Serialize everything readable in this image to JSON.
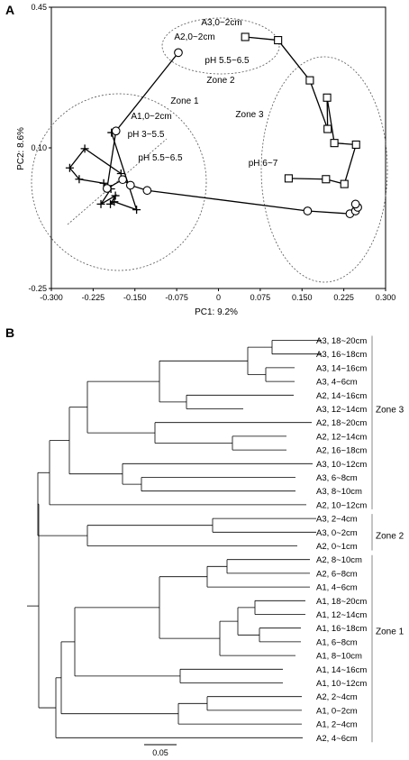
{
  "panel_a": {
    "letter": "A"
  },
  "panel_b": {
    "letter": "B"
  },
  "chart_data": [
    {
      "type": "scatter",
      "xlabel": "PC1: 9.2%",
      "ylabel": "PC2: 8.6%",
      "xlim": [
        -0.3,
        0.3
      ],
      "ylim": [
        -0.25,
        0.45
      ],
      "xticks": [
        "-0.300",
        "-0.225",
        "-0.150",
        "-0.075",
        "0",
        "0.075",
        "0.150",
        "0.225",
        "0.300"
      ],
      "yticks": [
        "0.45",
        "0.10",
        "-0.25"
      ],
      "grid": false,
      "series": [
        {
          "name": "A1",
          "marker": "plus",
          "points": [
            [
              -0.175,
              0.036
            ],
            [
              -0.24,
              0.098
            ],
            [
              -0.267,
              0.05
            ],
            [
              -0.25,
              0.022
            ],
            [
              -0.206,
              0.012
            ],
            [
              -0.193,
              -0.002
            ],
            [
              -0.211,
              -0.04
            ],
            [
              -0.185,
              -0.019
            ],
            [
              -0.194,
              -0.04
            ],
            [
              -0.187,
              -0.034
            ],
            [
              -0.147,
              -0.054
            ],
            [
              -0.192,
              0.138
            ]
          ]
        },
        {
          "name": "A2",
          "marker": "circle",
          "points": [
            [
              -0.072,
              0.337
            ],
            [
              -0.184,
              0.142
            ],
            [
              -0.2,
              -0.001
            ],
            [
              -0.172,
              0.021
            ],
            [
              -0.158,
              0.007
            ],
            [
              -0.128,
              -0.006
            ],
            [
              0.16,
              -0.057
            ],
            [
              0.236,
              -0.064
            ],
            [
              0.246,
              -0.057
            ],
            [
              0.25,
              -0.048
            ],
            [
              0.246,
              -0.04
            ]
          ]
        },
        {
          "name": "A3",
          "marker": "square",
          "points": [
            [
              0.048,
              0.376
            ],
            [
              0.107,
              0.368
            ],
            [
              0.164,
              0.268
            ],
            [
              0.196,
              0.147
            ],
            [
              0.195,
              0.225
            ],
            [
              0.208,
              0.112
            ],
            [
              0.247,
              0.108
            ],
            [
              0.226,
              0.01
            ],
            [
              0.193,
              0.022
            ],
            [
              0.126,
              0.024
            ]
          ]
        }
      ],
      "annotations": [
        "A3,0~2cm",
        "A2,0~2cm",
        "pH 5.5~6.5",
        "Zone 2",
        "Zone 1",
        "A1,0~2cm",
        "pH 3~5.5",
        "pH 5.5~6.5",
        "Zone 3",
        "pH 6~7"
      ]
    },
    {
      "type": "dendrogram",
      "scale_label": "0.05",
      "leaves": [
        "A3, 18~20cm",
        "A3, 16~18cm",
        "A3, 14~16cm",
        "A3, 4~6cm",
        "A2, 14~16cm",
        "A3, 12~14cm",
        "A2, 18~20cm",
        "A2, 12~14cm",
        "A2, 16~18cm",
        "A3, 10~12cm",
        "A3, 6~8cm",
        "A3, 8~10cm",
        "A2, 10~12cm",
        "A3, 2~4cm",
        "A3, 0~2cm",
        "A2, 0~1cm",
        "A2, 8~10cm",
        "A2, 6~8cm",
        "A1, 4~6cm",
        "A1, 18~20cm",
        "A1, 12~14cm",
        "A1, 16~18cm",
        "A1, 6~8cm",
        "A1, 8~10cm",
        "A1, 14~16cm",
        "A1, 10~12cm",
        "A2, 2~4cm",
        "A1, 0~2cm",
        "A1, 2~4cm",
        "A2, 4~6cm"
      ],
      "zones": [
        "Zone 3",
        "Zone 2",
        "Zone 1"
      ]
    }
  ]
}
